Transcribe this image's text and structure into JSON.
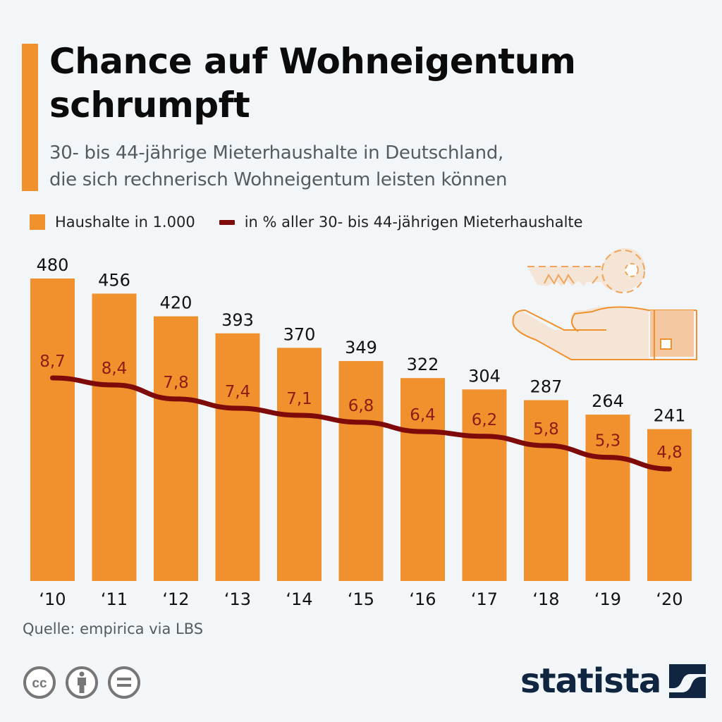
{
  "header": {
    "title": "Chance auf Wohneigentum schrumpft",
    "subtitle_line1": "30- bis 44-jährige Mieterhaushalte in Deutschland,",
    "subtitle_line2": "die sich rechnerisch Wohneigentum leisten können"
  },
  "legend": {
    "bar_label": "Haushalte in 1.000",
    "line_label": "in % aller 30- bis 44-jährigen Mieterhaushalte"
  },
  "colors": {
    "bar": "#f0912e",
    "line": "#7e0a0a",
    "line_label": "#8a1c14",
    "bar_label": "#111111",
    "background": "#f3f6f9",
    "brand": "#0f2540"
  },
  "chart_data": {
    "type": "bar",
    "title": "Chance auf Wohneigentum schrumpft",
    "subtitle": "30- bis 44-jährige Mieterhaushalte in Deutschland, die sich rechnerisch Wohneigentum leisten können",
    "categories": [
      "‘10",
      "‘11",
      "‘12",
      "‘13",
      "‘14",
      "‘15",
      "‘16",
      "‘17",
      "‘18",
      "‘19",
      "‘20"
    ],
    "series": [
      {
        "name": "Haushalte in 1.000",
        "type": "bar",
        "values": [
          480,
          456,
          420,
          393,
          370,
          349,
          322,
          304,
          287,
          264,
          241
        ],
        "labels": [
          "480",
          "456",
          "420",
          "393",
          "370",
          "349",
          "322",
          "304",
          "287",
          "264",
          "241"
        ]
      },
      {
        "name": "in % aller 30- bis 44-jährigen Mieterhaushalte",
        "type": "line",
        "values": [
          8.7,
          8.4,
          7.8,
          7.4,
          7.1,
          6.8,
          6.4,
          6.2,
          5.8,
          5.3,
          4.8
        ],
        "labels": [
          "8,7",
          "8,4",
          "7,8",
          "7,4",
          "7,1",
          "6,8",
          "6,4",
          "6,2",
          "5,8",
          "5,3",
          "4,8"
        ]
      }
    ],
    "xlabel": "",
    "ylabel": "",
    "ylim_bars": [
      0,
      480
    ],
    "ylim_line": [
      0,
      13
    ],
    "grid": false,
    "legend_position": "top-left"
  },
  "footer": {
    "source": "Quelle: empirica via LBS",
    "license_icons": [
      "cc-icon",
      "by-attribution-icon",
      "no-derivatives-icon"
    ],
    "brand": "statista"
  }
}
